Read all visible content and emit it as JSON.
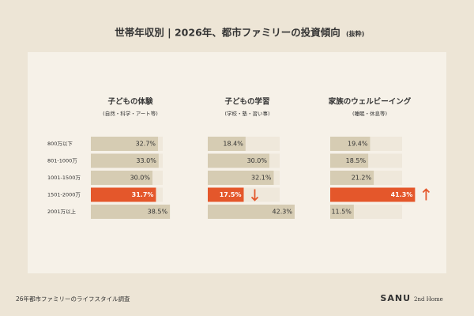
{
  "title": "世帯年収別 | 2026年、都市ファミリーの投資傾向",
  "title_note": "(抜粋)",
  "categories": [
    "800万以下",
    "801-1000万",
    "1001-1500万",
    "1501-2000万",
    "2001万以上"
  ],
  "chart_data": [
    {
      "type": "bar",
      "title": "子どもの体験",
      "subtitle": "(自然・科学・アート等)",
      "values": [
        32.7,
        33.0,
        30.0,
        31.7,
        38.5
      ],
      "value_labels": [
        "32.7%",
        "33.0%",
        "30.0%",
        "31.7%",
        "38.5%"
      ],
      "color": "#d6ccb3",
      "highlight_index": 3,
      "highlight_color": "#e4572b",
      "xlim": [
        0,
        50
      ]
    },
    {
      "type": "bar",
      "title": "子どもの学習",
      "subtitle": "(学校・塾・習い事)",
      "values": [
        18.4,
        30.0,
        32.1,
        17.5,
        42.3
      ],
      "value_labels": [
        "18.4%",
        "30.0%",
        "32.1%",
        "17.5%",
        "42.3%"
      ],
      "color": "#d6ccb3",
      "highlight_index": 3,
      "highlight_color": "#e4572b",
      "highlight_arrow": "down",
      "xlim": [
        0,
        50
      ]
    },
    {
      "type": "bar",
      "title": "家族のウェルビーイング",
      "subtitle": "(睡眠・休息等)",
      "values": [
        19.4,
        18.5,
        21.2,
        41.3,
        11.5
      ],
      "value_labels": [
        "19.4%",
        "18.5%",
        "21.2%",
        "41.3%",
        "11.5%"
      ],
      "color": "#d6ccb3",
      "highlight_index": 3,
      "highlight_color": "#e4572b",
      "highlight_arrow": "up",
      "xlim": [
        0,
        50
      ]
    }
  ],
  "footer": "26年都市ファミリーのライフスタイル調査",
  "brand": {
    "name": "SANU",
    "tagline": "2nd Home"
  }
}
